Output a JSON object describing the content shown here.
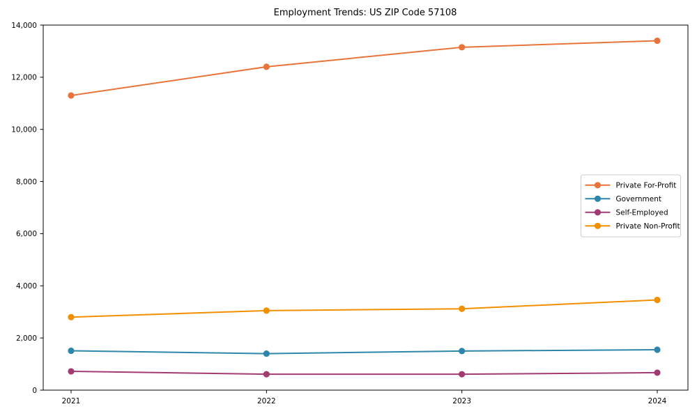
{
  "chart_data": {
    "type": "line",
    "title": "Employment Trends: US ZIP Code 57108",
    "categories": [
      "2021",
      "2022",
      "2023",
      "2024"
    ],
    "series": [
      {
        "name": "Private For-Profit",
        "color": "#E8743B",
        "values": [
          11300,
          12400,
          13150,
          13400
        ]
      },
      {
        "name": "Government",
        "color": "#2E86AB",
        "values": [
          1510,
          1400,
          1500,
          1550
        ]
      },
      {
        "name": "Self-Employed",
        "color": "#A23B72",
        "values": [
          720,
          610,
          610,
          670
        ]
      },
      {
        "name": "Private Non-Profit",
        "color": "#F18F01",
        "values": [
          2800,
          3050,
          3120,
          3460
        ]
      }
    ],
    "xlabel": "",
    "ylabel": "",
    "ylim": [
      0,
      14000
    ],
    "yticks": [
      0,
      2000,
      4000,
      6000,
      8000,
      10000,
      12000,
      14000
    ],
    "ytick_labels": [
      "0",
      "2,000",
      "4,000",
      "6,000",
      "8,000",
      "10,000",
      "12,000",
      "14,000"
    ],
    "grid": false,
    "legend_position": "center-right",
    "marker": "circle",
    "axis_color": "#000000",
    "legend_border_color": "#cccccc",
    "background_color": "#ffffff"
  }
}
